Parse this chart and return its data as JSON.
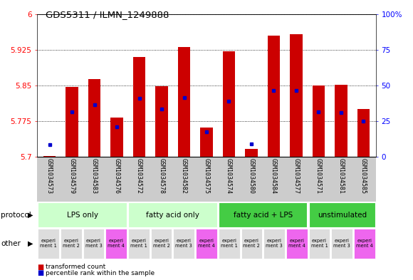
{
  "title": "GDS5311 / ILMN_1249888",
  "samples": [
    "GSM1034573",
    "GSM1034579",
    "GSM1034583",
    "GSM1034576",
    "GSM1034572",
    "GSM1034578",
    "GSM1034582",
    "GSM1034575",
    "GSM1034574",
    "GSM1034580",
    "GSM1034584",
    "GSM1034577",
    "GSM1034571",
    "GSM1034581",
    "GSM1034585"
  ],
  "red_values": [
    5.702,
    5.847,
    5.863,
    5.782,
    5.91,
    5.848,
    5.93,
    5.762,
    5.922,
    5.717,
    5.955,
    5.958,
    5.85,
    5.852,
    5.8
  ],
  "blue_values": [
    5.726,
    5.795,
    5.81,
    5.763,
    5.823,
    5.8,
    5.825,
    5.752,
    5.817,
    5.727,
    5.84,
    5.84,
    5.795,
    5.793,
    5.775
  ],
  "y_min": 5.7,
  "y_max": 6.0,
  "yticks_left": [
    5.7,
    5.775,
    5.85,
    5.925,
    6.0
  ],
  "ytick_labels_left": [
    "5.7",
    "5.775",
    "5.85",
    "5.925",
    "6"
  ],
  "yticks_right_vals": [
    5.7,
    5.775,
    5.85,
    5.925,
    6.0
  ],
  "ytick_labels_right": [
    "0",
    "25",
    "50",
    "75",
    "100%"
  ],
  "groups": [
    {
      "label": "LPS only",
      "start": 0,
      "end": 4,
      "color": "#ccffcc"
    },
    {
      "label": "fatty acid only",
      "start": 4,
      "end": 8,
      "color": "#ccffcc"
    },
    {
      "label": "fatty acid + LPS",
      "start": 8,
      "end": 12,
      "color": "#44cc44"
    },
    {
      "label": "unstimulated",
      "start": 12,
      "end": 15,
      "color": "#44cc44"
    }
  ],
  "experiment_labels": [
    "experi\nment 1",
    "experi\nment 2",
    "experi\nment 3",
    "experi\nment 4",
    "experi\nment 1",
    "experi\nment 2",
    "experi\nment 3",
    "experi\nment 4",
    "experi\nment 1",
    "experi\nment 2",
    "experi\nment 3",
    "experi\nment 4",
    "experi\nment 1",
    "experi\nment 3",
    "experi\nment 4"
  ],
  "exp_colors": [
    "#dddddd",
    "#dddddd",
    "#dddddd",
    "#ee66ee",
    "#dddddd",
    "#dddddd",
    "#dddddd",
    "#ee66ee",
    "#dddddd",
    "#dddddd",
    "#dddddd",
    "#ee66ee",
    "#dddddd",
    "#dddddd",
    "#ee66ee"
  ],
  "bar_color": "#cc0000",
  "blue_color": "#0000cc",
  "label_bg": "#cccccc",
  "base_value": 5.7,
  "bar_width": 0.55
}
